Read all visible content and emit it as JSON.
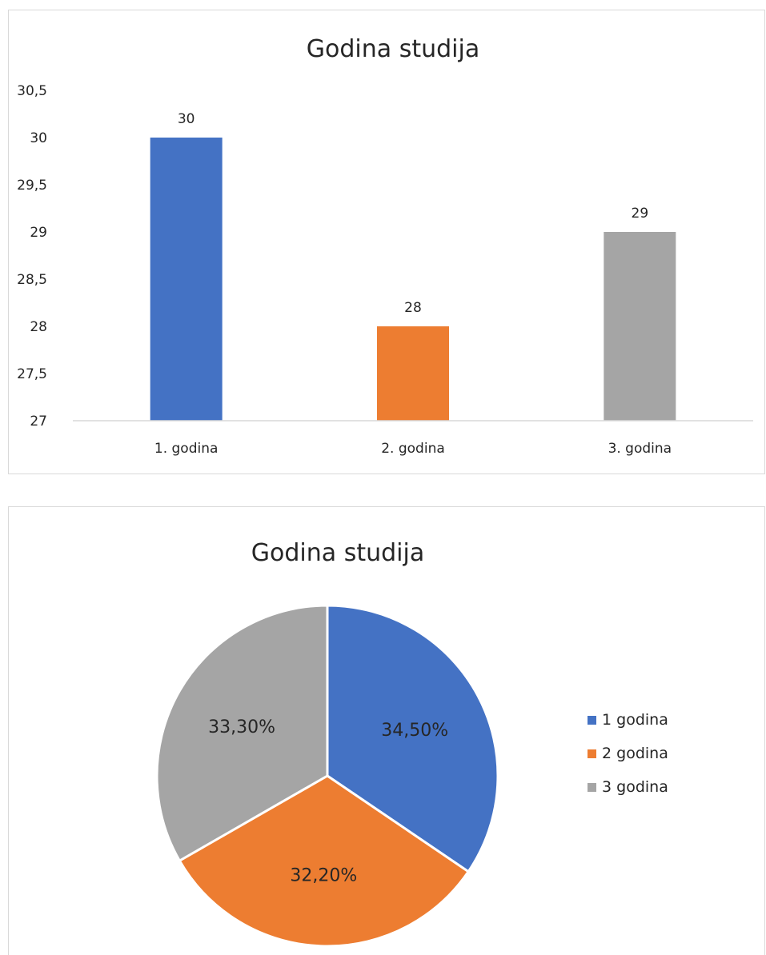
{
  "chart_data": [
    {
      "type": "bar",
      "title": "Godina studija",
      "categories": [
        "1. godina",
        "2. godina",
        "3. godina"
      ],
      "values": [
        30,
        28,
        29
      ],
      "value_labels": [
        "30",
        "28",
        "29"
      ],
      "colors": [
        "#4472c4",
        "#ed7d31",
        "#a5a5a5"
      ],
      "ylim": [
        27,
        30.5
      ],
      "yticks": [
        27,
        27.5,
        28,
        28.5,
        29,
        29.5,
        30,
        30.5
      ],
      "ytick_labels": [
        "27",
        "27,5",
        "28",
        "28,5",
        "29",
        "29,5",
        "30",
        "30,5"
      ],
      "grid": false,
      "legend": "none"
    },
    {
      "type": "pie",
      "title": "Godina studija",
      "slices": [
        {
          "name": "1 godina",
          "value": 34.5,
          "label": "34,50%",
          "color": "#4472c4"
        },
        {
          "name": "2 godina",
          "value": 32.2,
          "label": "32,20%",
          "color": "#ed7d31"
        },
        {
          "name": "3 godina",
          "value": 33.3,
          "label": "33,30%",
          "color": "#a5a5a5"
        }
      ],
      "legend": "right"
    }
  ]
}
